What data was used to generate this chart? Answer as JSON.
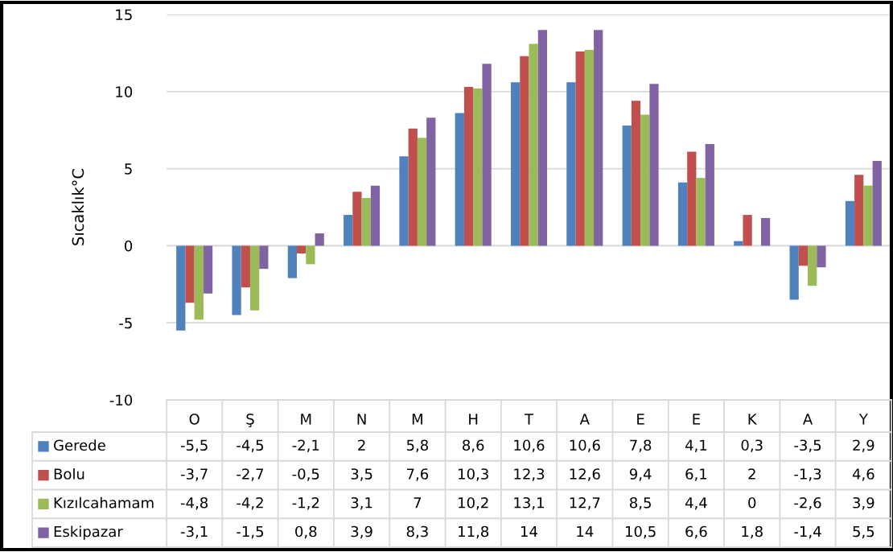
{
  "chart_data": {
    "type": "bar",
    "ylabel": "Sıcaklık°C",
    "categories": [
      "O",
      "Ş",
      "M",
      "N",
      "M",
      "H",
      "T",
      "A",
      "E",
      "E",
      "K",
      "A",
      "Y"
    ],
    "series": [
      {
        "name": "Gerede",
        "color": "#4f81bd",
        "values": [
          -5.5,
          -4.5,
          -2.1,
          2,
          5.8,
          8.6,
          10.6,
          10.6,
          7.8,
          4.1,
          0.3,
          -3.5,
          2.9
        ],
        "value_labels": [
          "-5,5",
          "-4,5",
          "-2,1",
          "2",
          "5,8",
          "8,6",
          "10,6",
          "10,6",
          "7,8",
          "4,1",
          "0,3",
          "-3,5",
          "2,9"
        ]
      },
      {
        "name": "Bolu",
        "color": "#c0504d",
        "values": [
          -3.7,
          -2.7,
          -0.5,
          3.5,
          7.6,
          10.3,
          12.3,
          12.6,
          9.4,
          6.1,
          2,
          -1.3,
          4.6
        ],
        "value_labels": [
          "-3,7",
          "-2,7",
          "-0,5",
          "3,5",
          "7,6",
          "10,3",
          "12,3",
          "12,6",
          "9,4",
          "6,1",
          "2",
          "-1,3",
          "4,6"
        ]
      },
      {
        "name": "Kızılcahamam",
        "color": "#9bbb59",
        "values": [
          -4.8,
          -4.2,
          -1.2,
          3.1,
          7,
          10.2,
          13.1,
          12.7,
          8.5,
          4.4,
          0,
          -2.6,
          3.9
        ],
        "value_labels": [
          "-4,8",
          "-4,2",
          "-1,2",
          "3,1",
          "7",
          "10,2",
          "13,1",
          "12,7",
          "8,5",
          "4,4",
          "0",
          "-2,6",
          "3,9"
        ]
      },
      {
        "name": "Eskipazar",
        "color": "#8064a2",
        "values": [
          -3.1,
          -1.5,
          0.8,
          3.9,
          8.3,
          11.8,
          14,
          14,
          10.5,
          6.6,
          1.8,
          -1.4,
          5.5
        ],
        "value_labels": [
          "-3,1",
          "-1,5",
          "0,8",
          "3,9",
          "8,3",
          "11,8",
          "14",
          "14",
          "10,5",
          "6,6",
          "1,8",
          "-1,4",
          "5,5"
        ]
      }
    ],
    "ylim": [
      -10,
      15
    ],
    "yticks": [
      -10,
      -5,
      0,
      5,
      10,
      15
    ],
    "grid": "y",
    "legend": "bottom"
  }
}
